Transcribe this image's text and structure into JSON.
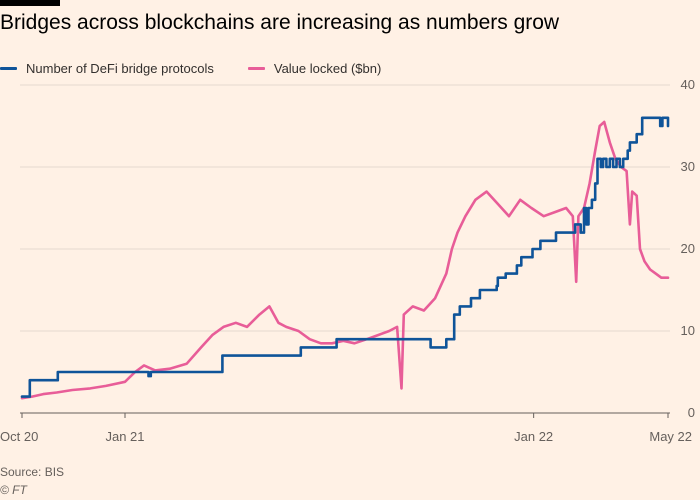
{
  "chart_data": {
    "type": "line",
    "title": "Bridges across blockchains are increasing as numbers grow",
    "xlabel": "",
    "ylabel": "",
    "x_range": [
      "2020-10-01",
      "2022-05-01"
    ],
    "x_ticks": [
      {
        "date": "2020-10-01",
        "label": "Oct 20"
      },
      {
        "date": "2021-01-01",
        "label": "Jan 21"
      },
      {
        "date": "2022-01-01",
        "label": "Jan 22"
      },
      {
        "date": "2022-05-01",
        "label": "May 22"
      }
    ],
    "ylim": [
      0,
      40
    ],
    "y_ticks": [
      0,
      10,
      20,
      30,
      40
    ],
    "y_axis_side": "right",
    "grid": "horizontal",
    "legend_position": "top-left",
    "series": [
      {
        "name": "Number of DeFi bridge protocols",
        "color": "#0f5499",
        "step": true,
        "points": [
          [
            "2020-10-01",
            2
          ],
          [
            "2020-10-07",
            2
          ],
          [
            "2020-10-08",
            4
          ],
          [
            "2020-11-01",
            4
          ],
          [
            "2020-11-02",
            5
          ],
          [
            "2021-01-20",
            5
          ],
          [
            "2021-01-22",
            4.5
          ],
          [
            "2021-01-24",
            5
          ],
          [
            "2021-03-28",
            5
          ],
          [
            "2021-03-29",
            7
          ],
          [
            "2021-06-06",
            7
          ],
          [
            "2021-06-07",
            8
          ],
          [
            "2021-07-08",
            8
          ],
          [
            "2021-07-09",
            9
          ],
          [
            "2021-09-30",
            9
          ],
          [
            "2021-10-01",
            8
          ],
          [
            "2021-10-14",
            8
          ],
          [
            "2021-10-15",
            9
          ],
          [
            "2021-10-20",
            9
          ],
          [
            "2021-10-22",
            12
          ],
          [
            "2021-10-25",
            12
          ],
          [
            "2021-10-27",
            13
          ],
          [
            "2021-11-05",
            13
          ],
          [
            "2021-11-06",
            14
          ],
          [
            "2021-11-13",
            14
          ],
          [
            "2021-11-14",
            15
          ],
          [
            "2021-11-28",
            15
          ],
          [
            "2021-11-29",
            15.5
          ],
          [
            "2021-11-30",
            16.5
          ],
          [
            "2021-12-06",
            16.5
          ],
          [
            "2021-12-07",
            17
          ],
          [
            "2021-12-16",
            17
          ],
          [
            "2021-12-17",
            18
          ],
          [
            "2021-12-20",
            18
          ],
          [
            "2021-12-21",
            19
          ],
          [
            "2021-12-30",
            19
          ],
          [
            "2021-12-31",
            20
          ],
          [
            "2022-01-06",
            20
          ],
          [
            "2022-01-07",
            21
          ],
          [
            "2022-01-20",
            21
          ],
          [
            "2022-01-21",
            22
          ],
          [
            "2022-02-06",
            22
          ],
          [
            "2022-02-07",
            23
          ],
          [
            "2022-02-12",
            22
          ],
          [
            "2022-02-15",
            25
          ],
          [
            "2022-02-17",
            23
          ],
          [
            "2022-02-19",
            25
          ],
          [
            "2022-02-22",
            26
          ],
          [
            "2022-02-25",
            28
          ],
          [
            "2022-02-27",
            31
          ],
          [
            "2022-03-02",
            30
          ],
          [
            "2022-03-04",
            31
          ],
          [
            "2022-03-07",
            30
          ],
          [
            "2022-03-10",
            31
          ],
          [
            "2022-03-13",
            30
          ],
          [
            "2022-03-16",
            31
          ],
          [
            "2022-03-19",
            30
          ],
          [
            "2022-03-22",
            31
          ],
          [
            "2022-03-26",
            32
          ],
          [
            "2022-03-28",
            33
          ],
          [
            "2022-04-01",
            33
          ],
          [
            "2022-04-03",
            34
          ],
          [
            "2022-04-06",
            34
          ],
          [
            "2022-04-08",
            36
          ],
          [
            "2022-04-22",
            36
          ],
          [
            "2022-04-24",
            35
          ],
          [
            "2022-04-26",
            36
          ],
          [
            "2022-04-30",
            36
          ],
          [
            "2022-05-01",
            35
          ]
        ]
      },
      {
        "name": "Value locked ($bn)",
        "color": "#e85d98",
        "step": false,
        "points": [
          [
            "2020-10-01",
            1.8
          ],
          [
            "2020-10-10",
            2.0
          ],
          [
            "2020-10-20",
            2.3
          ],
          [
            "2020-11-01",
            2.5
          ],
          [
            "2020-11-15",
            2.8
          ],
          [
            "2020-12-01",
            3.0
          ],
          [
            "2020-12-15",
            3.3
          ],
          [
            "2021-01-01",
            3.8
          ],
          [
            "2021-01-10",
            5.0
          ],
          [
            "2021-01-18",
            5.8
          ],
          [
            "2021-01-28",
            5.2
          ],
          [
            "2021-02-10",
            5.4
          ],
          [
            "2021-02-25",
            6.0
          ],
          [
            "2021-03-10",
            8.0
          ],
          [
            "2021-03-20",
            9.5
          ],
          [
            "2021-03-30",
            10.5
          ],
          [
            "2021-04-10",
            11.0
          ],
          [
            "2021-04-20",
            10.5
          ],
          [
            "2021-05-01",
            12.0
          ],
          [
            "2021-05-10",
            13.0
          ],
          [
            "2021-05-18",
            11.0
          ],
          [
            "2021-05-25",
            10.5
          ],
          [
            "2021-06-05",
            10.0
          ],
          [
            "2021-06-15",
            9.0
          ],
          [
            "2021-06-25",
            8.5
          ],
          [
            "2021-07-05",
            8.5
          ],
          [
            "2021-07-15",
            8.8
          ],
          [
            "2021-07-25",
            8.5
          ],
          [
            "2021-08-05",
            9.0
          ],
          [
            "2021-08-15",
            9.5
          ],
          [
            "2021-08-25",
            10.0
          ],
          [
            "2021-09-01",
            10.5
          ],
          [
            "2021-09-05",
            3.0
          ],
          [
            "2021-09-07",
            12.0
          ],
          [
            "2021-09-15",
            13.0
          ],
          [
            "2021-09-25",
            12.5
          ],
          [
            "2021-10-05",
            14.0
          ],
          [
            "2021-10-15",
            17.0
          ],
          [
            "2021-10-20",
            20.0
          ],
          [
            "2021-10-25",
            22.0
          ],
          [
            "2021-11-01",
            24.0
          ],
          [
            "2021-11-10",
            26.0
          ],
          [
            "2021-11-20",
            27.0
          ],
          [
            "2021-11-30",
            25.5
          ],
          [
            "2021-12-10",
            24.0
          ],
          [
            "2021-12-20",
            26.0
          ],
          [
            "2021-12-30",
            25.0
          ],
          [
            "2022-01-10",
            24.0
          ],
          [
            "2022-01-20",
            24.5
          ],
          [
            "2022-01-30",
            25.0
          ],
          [
            "2022-02-05",
            24.0
          ],
          [
            "2022-02-08",
            16.0
          ],
          [
            "2022-02-10",
            24.0
          ],
          [
            "2022-02-15",
            25.0
          ],
          [
            "2022-02-20",
            28.0
          ],
          [
            "2022-02-25",
            32.0
          ],
          [
            "2022-03-01",
            35.0
          ],
          [
            "2022-03-05",
            35.5
          ],
          [
            "2022-03-10",
            33.0
          ],
          [
            "2022-03-15",
            31.0
          ],
          [
            "2022-03-20",
            30.0
          ],
          [
            "2022-03-25",
            29.5
          ],
          [
            "2022-03-28",
            23.0
          ],
          [
            "2022-03-30",
            27.0
          ],
          [
            "2022-04-03",
            26.5
          ],
          [
            "2022-04-06",
            20.0
          ],
          [
            "2022-04-10",
            18.5
          ],
          [
            "2022-04-15",
            17.5
          ],
          [
            "2022-04-20",
            17.0
          ],
          [
            "2022-04-25",
            16.5
          ],
          [
            "2022-05-01",
            16.5
          ]
        ]
      }
    ]
  },
  "footer": {
    "source": "Source: BIS",
    "credit": "© FT"
  }
}
